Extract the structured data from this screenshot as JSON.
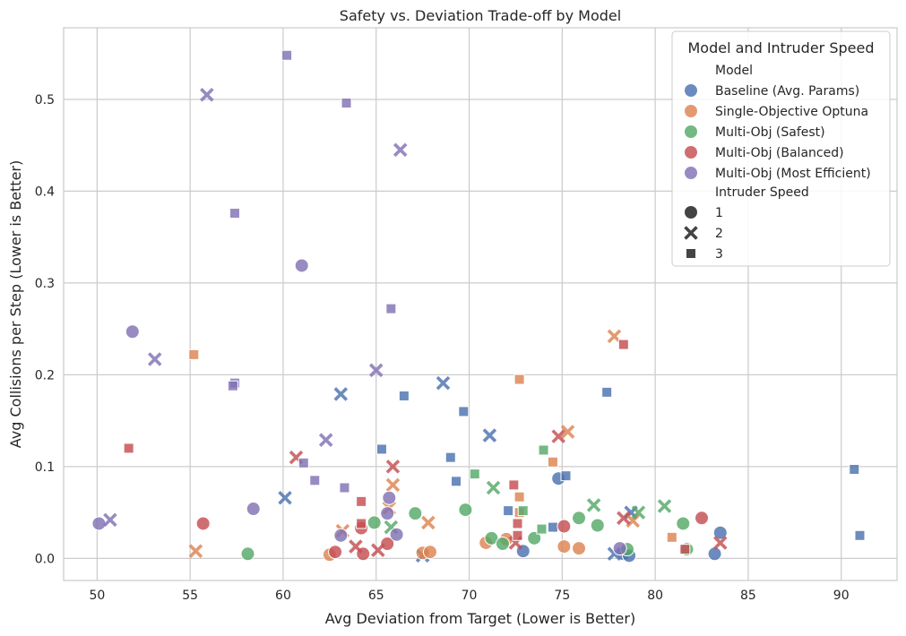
{
  "chart_data": {
    "type": "scatter",
    "title": "Safety vs. Deviation Trade-off by Model",
    "xlabel": "Avg Deviation from Target (Lower is Better)",
    "ylabel": "Avg Collisions per Step (Lower is Better)",
    "xlim": [
      48.2,
      93.0
    ],
    "ylim": [
      -0.024,
      0.578
    ],
    "x_ticks": [
      50,
      55,
      60,
      65,
      70,
      75,
      80,
      85,
      90
    ],
    "y_ticks": [
      0.0,
      0.1,
      0.2,
      0.3,
      0.4,
      0.5
    ],
    "grid": true,
    "legend": {
      "title": "Model and Intruder Speed",
      "placement": "top-right",
      "model_heading": "Model",
      "speed_heading": "Intruder Speed",
      "speed_markers": [
        {
          "label": "1",
          "marker": "circle"
        },
        {
          "label": "2",
          "marker": "x"
        },
        {
          "label": "3",
          "marker": "square"
        }
      ]
    },
    "series": [
      {
        "name": "Baseline (Avg. Params)",
        "color": "#4c72b0",
        "points": [
          [
            74.8,
            0.087,
            1
          ],
          [
            83.5,
            0.028,
            1
          ],
          [
            83.2,
            0.005,
            1
          ],
          [
            72.9,
            0.008,
            1
          ],
          [
            78.3,
            0.005,
            1
          ],
          [
            78.6,
            0.003,
            1
          ],
          [
            68.6,
            0.191,
            2
          ],
          [
            71.1,
            0.134,
            2
          ],
          [
            63.1,
            0.179,
            2
          ],
          [
            60.1,
            0.066,
            2
          ],
          [
            78.7,
            0.05,
            2
          ],
          [
            77.8,
            0.005,
            2
          ],
          [
            67.5,
            0.003,
            2
          ],
          [
            69.7,
            0.16,
            3
          ],
          [
            66.5,
            0.177,
            3
          ],
          [
            77.4,
            0.181,
            3
          ],
          [
            65.3,
            0.119,
            3
          ],
          [
            69.0,
            0.11,
            3
          ],
          [
            69.3,
            0.084,
            3
          ],
          [
            72.1,
            0.052,
            3
          ],
          [
            75.2,
            0.09,
            3
          ],
          [
            74.5,
            0.034,
            3
          ],
          [
            90.7,
            0.097,
            3
          ],
          [
            91.0,
            0.025,
            3
          ]
        ]
      },
      {
        "name": "Single-Objective Optuna",
        "color": "#dd8452",
        "points": [
          [
            62.5,
            0.004,
            1
          ],
          [
            67.5,
            0.006,
            1
          ],
          [
            67.9,
            0.007,
            1
          ],
          [
            70.9,
            0.017,
            1
          ],
          [
            72.0,
            0.021,
            1
          ],
          [
            75.1,
            0.013,
            1
          ],
          [
            75.9,
            0.011,
            1
          ],
          [
            77.8,
            0.242,
            2
          ],
          [
            75.3,
            0.138,
            2
          ],
          [
            65.9,
            0.08,
            2
          ],
          [
            65.7,
            0.055,
            2
          ],
          [
            67.8,
            0.039,
            2
          ],
          [
            63.2,
            0.03,
            2
          ],
          [
            55.3,
            0.008,
            2
          ],
          [
            78.8,
            0.041,
            2
          ],
          [
            55.2,
            0.222,
            3
          ],
          [
            72.7,
            0.195,
            3
          ],
          [
            74.5,
            0.105,
            3
          ],
          [
            72.7,
            0.067,
            3
          ],
          [
            72.7,
            0.05,
            3
          ],
          [
            80.9,
            0.023,
            3
          ]
        ]
      },
      {
        "name": "Multi-Obj (Safest)",
        "color": "#55a868",
        "points": [
          [
            58.1,
            0.005,
            1
          ],
          [
            64.9,
            0.039,
            1
          ],
          [
            67.1,
            0.049,
            1
          ],
          [
            69.8,
            0.053,
            1
          ],
          [
            71.2,
            0.022,
            1
          ],
          [
            71.8,
            0.016,
            1
          ],
          [
            73.5,
            0.022,
            1
          ],
          [
            75.9,
            0.044,
            1
          ],
          [
            76.9,
            0.036,
            1
          ],
          [
            78.5,
            0.01,
            1
          ],
          [
            81.5,
            0.038,
            1
          ],
          [
            81.7,
            0.01,
            1
          ],
          [
            76.7,
            0.058,
            2
          ],
          [
            79.1,
            0.05,
            2
          ],
          [
            80.5,
            0.057,
            2
          ],
          [
            71.3,
            0.077,
            2
          ],
          [
            65.8,
            0.034,
            2
          ],
          [
            74.0,
            0.118,
            3
          ],
          [
            70.3,
            0.092,
            3
          ],
          [
            72.9,
            0.052,
            3
          ],
          [
            73.9,
            0.032,
            3
          ]
        ]
      },
      {
        "name": "Multi-Obj (Balanced)",
        "color": "#c44e52",
        "points": [
          [
            55.7,
            0.038,
            1
          ],
          [
            62.8,
            0.007,
            1
          ],
          [
            64.2,
            0.033,
            1
          ],
          [
            64.3,
            0.005,
            1
          ],
          [
            65.6,
            0.016,
            1
          ],
          [
            75.1,
            0.035,
            1
          ],
          [
            82.5,
            0.044,
            1
          ],
          [
            60.7,
            0.11,
            2
          ],
          [
            65.9,
            0.1,
            2
          ],
          [
            74.8,
            0.133,
            2
          ],
          [
            78.3,
            0.044,
            2
          ],
          [
            83.5,
            0.017,
            2
          ],
          [
            63.9,
            0.013,
            2
          ],
          [
            65.1,
            0.009,
            2
          ],
          [
            72.5,
            0.017,
            2
          ],
          [
            51.7,
            0.12,
            3
          ],
          [
            78.3,
            0.233,
            3
          ],
          [
            72.4,
            0.08,
            3
          ],
          [
            72.6,
            0.038,
            3
          ],
          [
            72.6,
            0.025,
            3
          ],
          [
            64.2,
            0.062,
            3
          ],
          [
            64.2,
            0.038,
            3
          ],
          [
            81.6,
            0.01,
            3
          ]
        ]
      },
      {
        "name": "Multi-Obj (Most Efficient)",
        "color": "#8172b3",
        "points": [
          [
            61.0,
            0.319,
            1
          ],
          [
            51.9,
            0.247,
            1
          ],
          [
            58.4,
            0.054,
            1
          ],
          [
            65.7,
            0.066,
            1
          ],
          [
            50.1,
            0.038,
            1
          ],
          [
            63.1,
            0.025,
            1
          ],
          [
            65.6,
            0.049,
            1
          ],
          [
            66.1,
            0.026,
            1
          ],
          [
            78.1,
            0.011,
            1
          ],
          [
            55.9,
            0.505,
            2
          ],
          [
            66.3,
            0.445,
            2
          ],
          [
            53.1,
            0.217,
            2
          ],
          [
            65.0,
            0.205,
            2
          ],
          [
            62.3,
            0.129,
            2
          ],
          [
            50.7,
            0.042,
            2
          ],
          [
            60.2,
            0.548,
            3
          ],
          [
            63.4,
            0.496,
            3
          ],
          [
            57.4,
            0.376,
            3
          ],
          [
            65.8,
            0.272,
            3
          ],
          [
            57.4,
            0.191,
            3
          ],
          [
            57.3,
            0.188,
            3
          ],
          [
            61.1,
            0.104,
            3
          ],
          [
            61.7,
            0.085,
            3
          ],
          [
            63.3,
            0.077,
            3
          ]
        ]
      }
    ]
  }
}
